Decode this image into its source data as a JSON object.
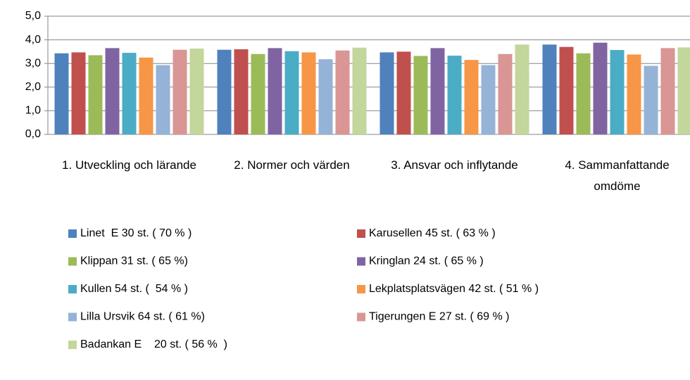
{
  "chart_data": {
    "type": "bar",
    "categories": [
      "1. Utveckling och lärande",
      "2. Normer och värden",
      "3. Ansvar och inflytande",
      "4. Sammanfattande omdöme"
    ],
    "series": [
      {
        "name": "Linet  E 30 st. ( 70 % )",
        "color": "#4f81bd",
        "values": [
          3.43,
          3.58,
          3.47,
          3.8
        ]
      },
      {
        "name": "Karusellen 45 st. ( 63 % )",
        "color": "#c0504d",
        "values": [
          3.47,
          3.6,
          3.5,
          3.7
        ]
      },
      {
        "name": "Klippan 31 st. ( 65 %)",
        "color": "#9bbb59",
        "values": [
          3.35,
          3.4,
          3.32,
          3.43
        ]
      },
      {
        "name": "Kringlan 24 st. ( 65 % )",
        "color": "#8064a2",
        "values": [
          3.65,
          3.65,
          3.65,
          3.88
        ]
      },
      {
        "name": "Kullen 54 st. (  54 % )",
        "color": "#4bacc6",
        "values": [
          3.45,
          3.52,
          3.33,
          3.57
        ]
      },
      {
        "name": "Lekplatsplatsvägen 42 st. ( 51 % )",
        "color": "#f79646",
        "values": [
          3.25,
          3.47,
          3.15,
          3.38
        ]
      },
      {
        "name": "Lilla Ursvik 64 st. ( 61 %)",
        "color": "#95b3d7",
        "values": [
          2.93,
          3.18,
          2.93,
          2.9
        ]
      },
      {
        "name": "Tigerungen E 27 st. ( 69 % )",
        "color": "#d99694",
        "values": [
          3.58,
          3.55,
          3.4,
          3.65
        ]
      },
      {
        "name": "Badankan E    20 st. ( 56 %  )",
        "color": "#c3d69b",
        "values": [
          3.63,
          3.67,
          3.8,
          3.68
        ]
      }
    ],
    "ylim": [
      0,
      5
    ],
    "yticks": [
      {
        "value": 0,
        "label": "0,0"
      },
      {
        "value": 1,
        "label": "1,0"
      },
      {
        "value": 2,
        "label": "2,0"
      },
      {
        "value": 3,
        "label": "3,0"
      },
      {
        "value": 4,
        "label": "4,0"
      },
      {
        "value": 5,
        "label": "5,0"
      }
    ],
    "grid": true,
    "legend": "bottom"
  }
}
